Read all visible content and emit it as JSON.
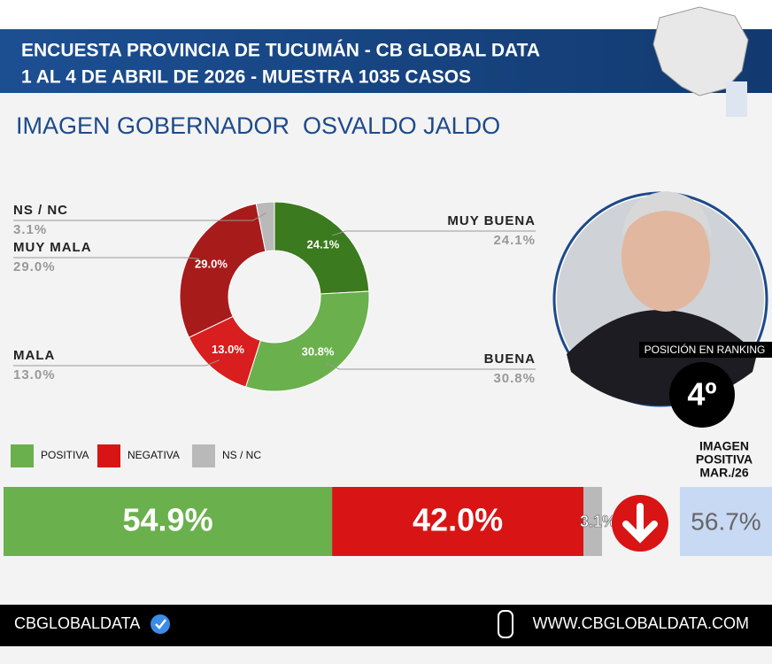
{
  "header": {
    "line1": "ENCUESTA PROVINCIA DE TUCUMÁN - CB GLOBAL DATA",
    "line2": "1 AL 4 DE ABRIL DE 2026 - MUESTRA 1035 CASOS"
  },
  "chart_data": [
    {
      "type": "pie",
      "title": "IMAGEN GOBERNADOR  OSVALDO JALDO",
      "categories": [
        "MUY BUENA",
        "BUENA",
        "MALA",
        "MUY MALA",
        "NS / NC"
      ],
      "values": [
        24.1,
        30.8,
        13.0,
        29.0,
        3.1
      ],
      "value_labels": [
        "24.1%",
        "30.8%",
        "13.0%",
        "29.0%",
        "3.1%"
      ],
      "colors": [
        "#3b7a1f",
        "#6ab04c",
        "#d81e1e",
        "#a81b1b",
        "#b9b9b9"
      ]
    },
    {
      "type": "stacked-bar",
      "series": [
        {
          "name": "POSITIVA",
          "color": "#6ab04c",
          "values": [
            54.9
          ],
          "value_labels": [
            "54.9%"
          ]
        },
        {
          "name": "NEGATIVA",
          "color": "#d81414",
          "values": [
            42.0
          ],
          "value_labels": [
            "42.0%"
          ]
        },
        {
          "name": "NS / NC",
          "color": "#b9b9b9",
          "values": [
            3.1
          ],
          "value_labels": [
            "3.1%"
          ]
        }
      ]
    }
  ],
  "comparison": {
    "title_lines": [
      "IMAGEN",
      "POSITIVA",
      "MAR./26"
    ],
    "value": "56.7%"
  },
  "ranking": {
    "label": "POSICIÓN EN RANKING",
    "position": "4º"
  },
  "footer": {
    "left": "CBGLOBALDATA",
    "right": "WWW.CBGLOBALDATA.COM"
  }
}
